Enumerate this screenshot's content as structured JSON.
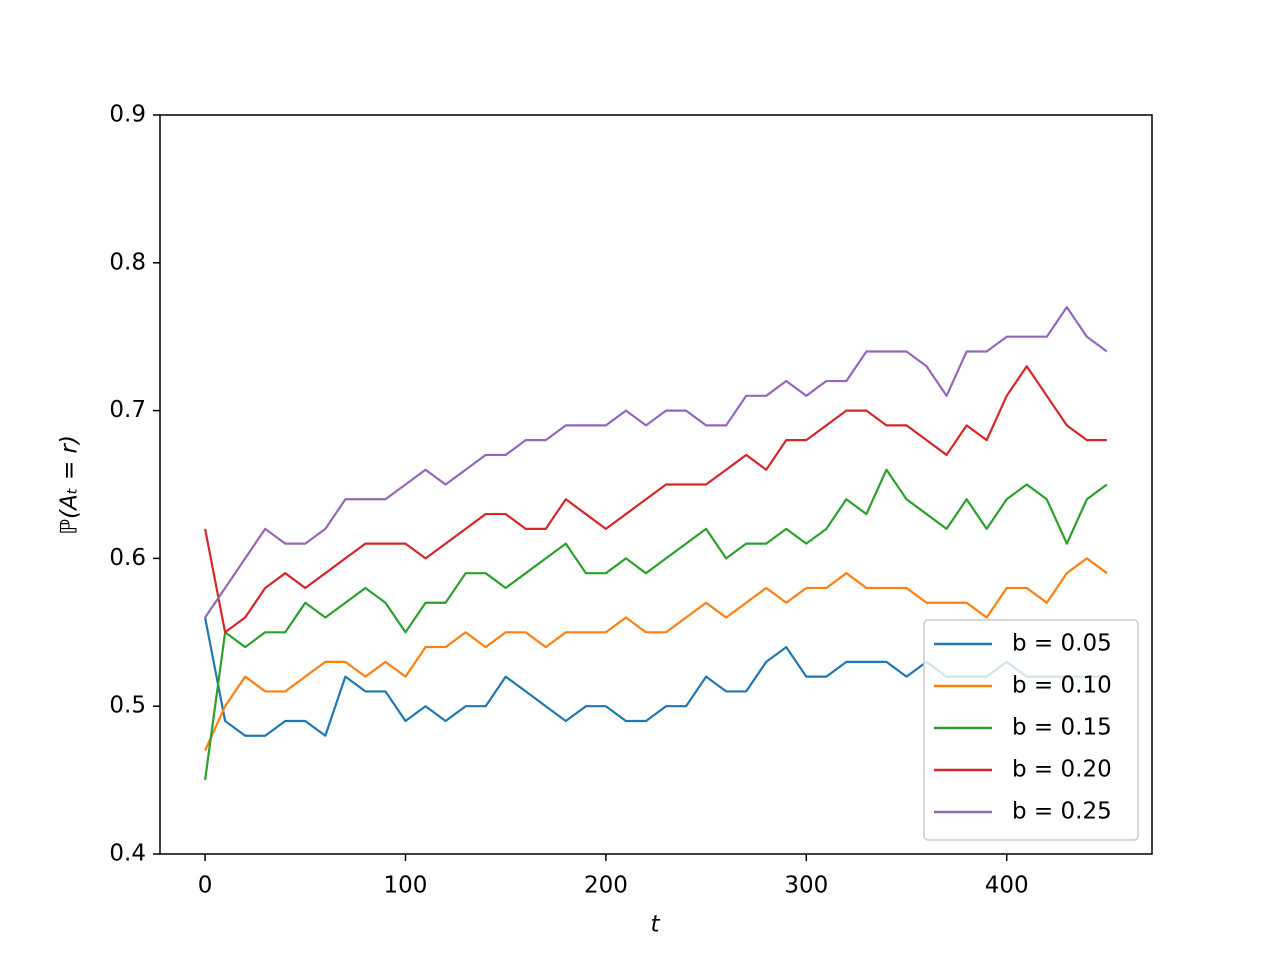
{
  "chart_data": {
    "type": "line",
    "x_label": "t",
    "y_label": "ℙ(Aₜ = r)",
    "x": [
      0,
      10,
      20,
      30,
      40,
      50,
      60,
      70,
      80,
      90,
      100,
      110,
      120,
      130,
      140,
      150,
      160,
      170,
      180,
      190,
      200,
      210,
      220,
      230,
      240,
      250,
      260,
      270,
      280,
      290,
      300,
      310,
      320,
      330,
      340,
      350,
      360,
      370,
      380,
      390,
      400,
      410,
      420,
      430,
      440,
      450
    ],
    "series": [
      {
        "name": "b = 0.05",
        "color": "#1f77b4",
        "values": [
          0.56,
          0.49,
          0.48,
          0.48,
          0.49,
          0.49,
          0.48,
          0.52,
          0.51,
          0.51,
          0.49,
          0.5,
          0.49,
          0.5,
          0.5,
          0.52,
          0.51,
          0.5,
          0.49,
          0.5,
          0.5,
          0.49,
          0.49,
          0.5,
          0.5,
          0.52,
          0.51,
          0.51,
          0.53,
          0.54,
          0.52,
          0.52,
          0.53,
          0.53,
          0.53,
          0.52,
          0.53,
          0.52,
          0.52,
          0.52,
          0.53,
          0.52,
          0.52,
          0.52,
          0.52,
          0.52
        ]
      },
      {
        "name": "b = 0.10",
        "color": "#ff7f0e",
        "values": [
          0.47,
          0.5,
          0.52,
          0.51,
          0.51,
          0.52,
          0.53,
          0.53,
          0.52,
          0.53,
          0.52,
          0.54,
          0.54,
          0.55,
          0.54,
          0.55,
          0.55,
          0.54,
          0.55,
          0.55,
          0.55,
          0.56,
          0.55,
          0.55,
          0.56,
          0.57,
          0.56,
          0.57,
          0.58,
          0.57,
          0.58,
          0.58,
          0.59,
          0.58,
          0.58,
          0.58,
          0.57,
          0.57,
          0.57,
          0.56,
          0.58,
          0.58,
          0.57,
          0.59,
          0.6,
          0.59
        ]
      },
      {
        "name": "b = 0.15",
        "color": "#2ca02c",
        "values": [
          0.45,
          0.55,
          0.54,
          0.55,
          0.55,
          0.57,
          0.56,
          0.57,
          0.58,
          0.57,
          0.55,
          0.57,
          0.57,
          0.59,
          0.59,
          0.58,
          0.59,
          0.6,
          0.61,
          0.59,
          0.59,
          0.6,
          0.59,
          0.6,
          0.61,
          0.62,
          0.6,
          0.61,
          0.61,
          0.62,
          0.61,
          0.62,
          0.64,
          0.63,
          0.66,
          0.64,
          0.63,
          0.62,
          0.64,
          0.62,
          0.64,
          0.65,
          0.64,
          0.61,
          0.64,
          0.65
        ]
      },
      {
        "name": "b = 0.20",
        "color": "#d62728",
        "values": [
          0.62,
          0.55,
          0.56,
          0.58,
          0.59,
          0.58,
          0.59,
          0.6,
          0.61,
          0.61,
          0.61,
          0.6,
          0.61,
          0.62,
          0.63,
          0.63,
          0.62,
          0.62,
          0.64,
          0.63,
          0.62,
          0.63,
          0.64,
          0.65,
          0.65,
          0.65,
          0.66,
          0.67,
          0.66,
          0.68,
          0.68,
          0.69,
          0.7,
          0.7,
          0.69,
          0.69,
          0.68,
          0.67,
          0.69,
          0.68,
          0.71,
          0.73,
          0.71,
          0.69,
          0.68,
          0.68
        ]
      },
      {
        "name": "b = 0.25",
        "color": "#9467bd",
        "values": [
          0.56,
          0.58,
          0.6,
          0.62,
          0.61,
          0.61,
          0.62,
          0.64,
          0.64,
          0.64,
          0.65,
          0.66,
          0.65,
          0.66,
          0.67,
          0.67,
          0.68,
          0.68,
          0.69,
          0.69,
          0.69,
          0.7,
          0.69,
          0.7,
          0.7,
          0.69,
          0.69,
          0.71,
          0.71,
          0.72,
          0.71,
          0.72,
          0.72,
          0.74,
          0.74,
          0.74,
          0.73,
          0.71,
          0.74,
          0.74,
          0.75,
          0.75,
          0.75,
          0.77,
          0.75,
          0.74
        ]
      }
    ],
    "xlim": [
      -22.5,
      472.5
    ],
    "ylim": [
      0.4,
      0.9
    ],
    "xticks": [
      0,
      100,
      200,
      300,
      400
    ],
    "yticks": [
      0.4,
      0.5,
      0.6,
      0.7,
      0.8,
      0.9
    ],
    "legend": "lower right"
  }
}
